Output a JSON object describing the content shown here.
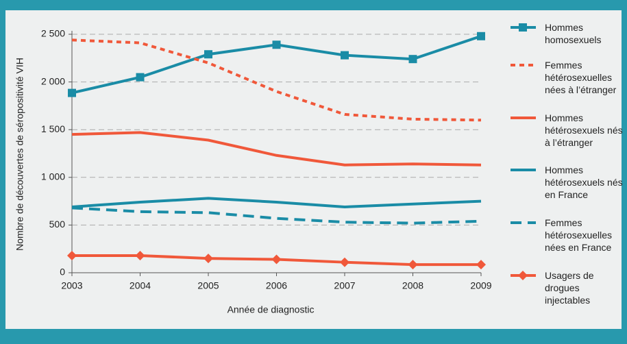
{
  "chart_data": {
    "type": "line",
    "xlabel": "Année de diagnostic",
    "ylabel": "Nombre de découvertes de séropositivité VIH",
    "x": [
      2003,
      2004,
      2005,
      2006,
      2007,
      2008,
      2009
    ],
    "xlim": [
      2003,
      2009
    ],
    "xticks": [
      2003,
      2004,
      2005,
      2006,
      2007,
      2008,
      2009
    ],
    "ylim": [
      0,
      2500
    ],
    "yticks": [
      0,
      500,
      {
        "value": 1000,
        "label": "1 000"
      },
      {
        "value": 1500,
        "label": "1 500"
      },
      {
        "value": 2000,
        "label": "2 000"
      },
      {
        "value": 2500,
        "label": "2 500"
      }
    ],
    "grid": true,
    "series": [
      {
        "name": "Hommes homosexuels",
        "color": "#1a8ca6",
        "dash": "solid",
        "marker": "square",
        "values": [
          1885,
          2050,
          2290,
          2390,
          2280,
          2240,
          2480
        ]
      },
      {
        "name": "Femmes hétérosexuelles nées à l’étranger",
        "color": "#f0583a",
        "dash": "dotted",
        "marker": "none",
        "values": [
          2440,
          2410,
          2200,
          1900,
          1660,
          1610,
          1600
        ]
      },
      {
        "name": "Hommes hétérosexuels nés à l’étranger",
        "color": "#f0583a",
        "dash": "solid",
        "marker": "none",
        "values": [
          1450,
          1470,
          1390,
          1230,
          1130,
          1140,
          1130
        ]
      },
      {
        "name": "Hommes hétérosexuels nés en France",
        "color": "#1a8ca6",
        "dash": "solid",
        "marker": "none",
        "values": [
          690,
          740,
          780,
          740,
          690,
          720,
          750
        ]
      },
      {
        "name": "Femmes hétérosexuelles nées en France",
        "color": "#1a8ca6",
        "dash": "dashed",
        "marker": "none",
        "values": [
          680,
          640,
          630,
          570,
          530,
          520,
          540
        ]
      },
      {
        "name": "Usagers de drogues injectables",
        "color": "#f0583a",
        "dash": "solid",
        "marker": "diamond",
        "values": [
          180,
          180,
          150,
          140,
          110,
          85,
          85
        ]
      }
    ]
  }
}
